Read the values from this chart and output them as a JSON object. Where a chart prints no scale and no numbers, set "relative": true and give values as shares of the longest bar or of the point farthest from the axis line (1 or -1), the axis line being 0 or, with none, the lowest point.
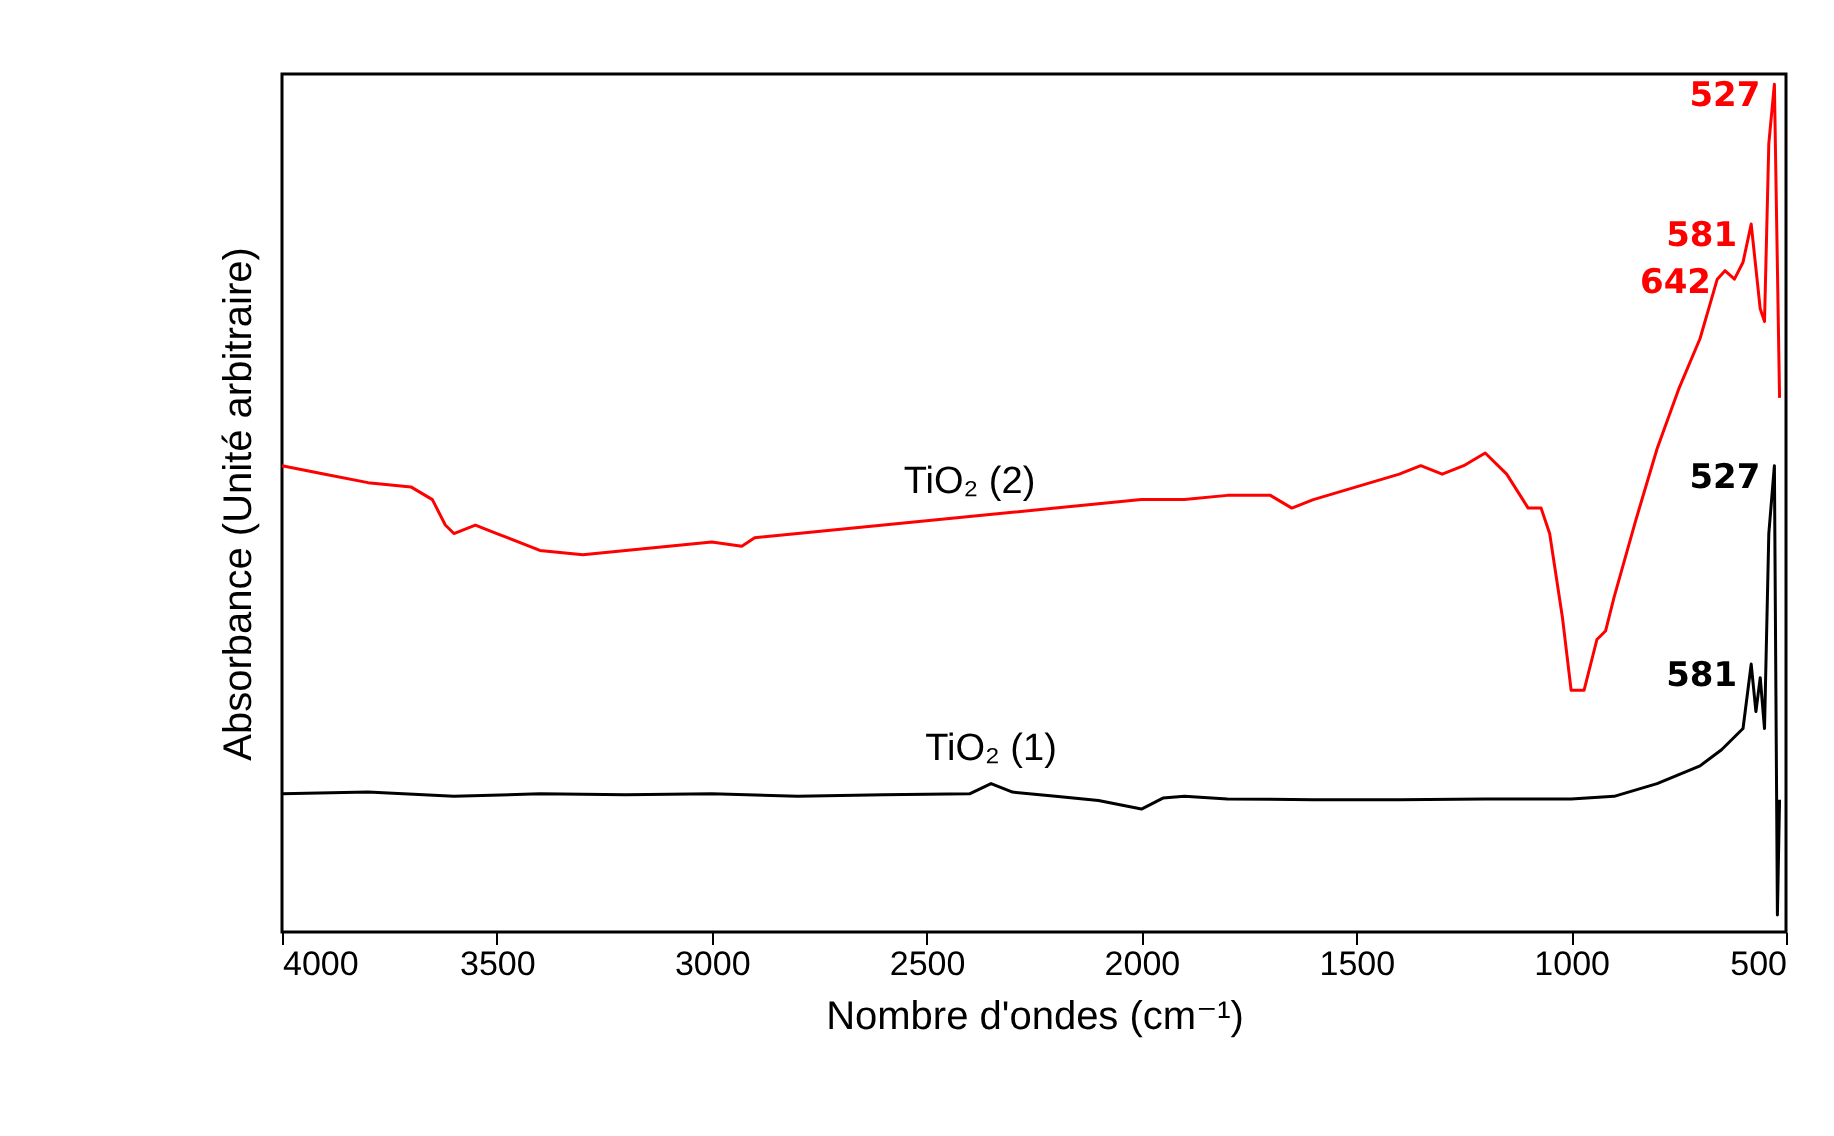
{
  "chart_data": {
    "type": "line",
    "relative": true,
    "xlabel": "Nombre d'ondes (cm⁻¹)",
    "ylabel": "Absorbance (Unité arbitraire)",
    "xlim": [
      4000,
      500
    ],
    "xticks": [
      4000,
      3500,
      3000,
      2500,
      2000,
      1500,
      1000,
      500
    ],
    "line_style": "solid",
    "marker": "none",
    "series": [
      {
        "name": "TiO₂ (2)",
        "color": "#ff0000",
        "x": [
          4000,
          3900,
          3800,
          3700,
          3650,
          3620,
          3600,
          3550,
          3500,
          3400,
          3300,
          3200,
          3100,
          3000,
          2930,
          2900,
          2800,
          2700,
          2600,
          2500,
          2400,
          2300,
          2200,
          2100,
          2000,
          1900,
          1800,
          1700,
          1650,
          1600,
          1500,
          1400,
          1350,
          1300,
          1250,
          1200,
          1150,
          1100,
          1070,
          1050,
          1020,
          1000,
          970,
          940,
          920,
          900,
          850,
          800,
          750,
          700,
          660,
          642,
          620,
          600,
          581,
          560,
          550,
          540,
          527,
          515
        ],
        "values": [
          0.55,
          0.54,
          0.53,
          0.525,
          0.51,
          0.48,
          0.47,
          0.48,
          0.47,
          0.45,
          0.445,
          0.45,
          0.455,
          0.46,
          0.455,
          0.465,
          0.47,
          0.475,
          0.48,
          0.485,
          0.49,
          0.495,
          0.5,
          0.505,
          0.51,
          0.51,
          0.515,
          0.515,
          0.5,
          0.51,
          0.525,
          0.54,
          0.55,
          0.54,
          0.55,
          0.565,
          0.54,
          0.5,
          0.5,
          0.47,
          0.37,
          0.285,
          0.285,
          0.345,
          0.355,
          0.395,
          0.485,
          0.57,
          0.64,
          0.7,
          0.77,
          0.78,
          0.77,
          0.79,
          0.835,
          0.735,
          0.72,
          0.93,
          1.0,
          0.63
        ]
      },
      {
        "name": "TiO₂ (1)",
        "color": "#000000",
        "x": [
          4000,
          3800,
          3600,
          3400,
          3200,
          3000,
          2800,
          2600,
          2400,
          2350,
          2300,
          2200,
          2100,
          2000,
          1950,
          1900,
          1800,
          1600,
          1400,
          1200,
          1000,
          900,
          800,
          700,
          650,
          600,
          581,
          570,
          560,
          550,
          540,
          527,
          520,
          515
        ],
        "values": [
          0.163,
          0.165,
          0.16,
          0.163,
          0.162,
          0.163,
          0.16,
          0.162,
          0.163,
          0.175,
          0.165,
          0.16,
          0.155,
          0.145,
          0.158,
          0.16,
          0.157,
          0.156,
          0.156,
          0.157,
          0.157,
          0.16,
          0.175,
          0.196,
          0.215,
          0.24,
          0.316,
          0.26,
          0.3,
          0.24,
          0.47,
          0.55,
          0.02,
          0.156
        ]
      }
    ],
    "annotations": [
      {
        "text": "527",
        "x": 527,
        "y": 1.0
      },
      {
        "text": "581",
        "x": 581,
        "y": 0.835
      },
      {
        "text": "642",
        "x": 642,
        "y": 0.78
      },
      {
        "text": "527",
        "x": 527,
        "y": 0.55
      },
      {
        "text": "581",
        "x": 581,
        "y": 0.316
      }
    ]
  }
}
